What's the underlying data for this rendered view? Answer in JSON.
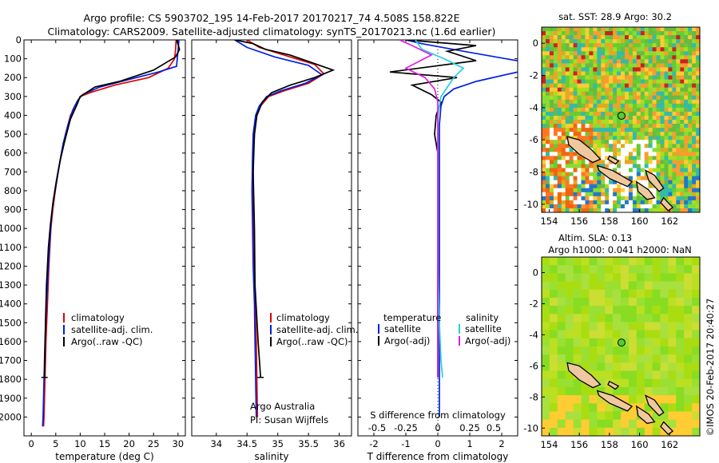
{
  "title_line1": "Argo profile: CS 5903702_195 14-Feb-2017 20170217_74 4.508S 158.822E",
  "title_line2": "Climatology: CARS2009. Satellite-adjusted climatology: synTS_20170213.nc (1.6d earlier)",
  "footer_stamp": "©IMOS 20-Feb-2017 20:40:27",
  "colors": {
    "climatology": "#e00000",
    "satellite": "#0020e0",
    "argo": "#000000",
    "argo_s": "#e020e0",
    "sat_s": "#20d0e0"
  },
  "chart_data": [
    {
      "type": "line",
      "id": "temperature",
      "xlabel": "temperature (deg C)",
      "xlim": [
        -1.5,
        31.5
      ],
      "xticks": [
        0,
        5,
        10,
        15,
        20,
        25,
        30
      ],
      "ylim": [
        0,
        2100
      ],
      "yticks": [
        0,
        100,
        200,
        300,
        400,
        500,
        600,
        700,
        800,
        900,
        1000,
        1100,
        1200,
        1300,
        1400,
        1500,
        1600,
        1700,
        1800,
        1900,
        2000
      ],
      "legend": [
        "climatology",
        "satellite-adj. clim.",
        "Argo(..raw -QC)"
      ],
      "series": [
        {
          "name": "climatology",
          "color": "climatology",
          "x": [
            29.6,
            29.5,
            29.3,
            28,
            24,
            17,
            12,
            10,
            9,
            8,
            7,
            6.2,
            5.5,
            4.9,
            4.4,
            4,
            3.6,
            3.3,
            3,
            2.8,
            2.6,
            2.5
          ],
          "y": [
            0,
            50,
            100,
            150,
            200,
            240,
            280,
            300,
            350,
            400,
            500,
            600,
            700,
            800,
            900,
            1000,
            1200,
            1400,
            1600,
            1800,
            2000,
            2050
          ]
        },
        {
          "name": "satellite-adj. clim.",
          "color": "satellite",
          "x": [
            30.2,
            30,
            29.7,
            26,
            20,
            14,
            10.5,
            9.5,
            8.5,
            7.5,
            6.5,
            5.8,
            5.1,
            4.5,
            4.1,
            3.7,
            3.4,
            3.1,
            2.8,
            2.6,
            2.4,
            2.3
          ],
          "y": [
            0,
            60,
            140,
            170,
            210,
            250,
            290,
            320,
            370,
            450,
            550,
            650,
            750,
            850,
            950,
            1100,
            1250,
            1400,
            1600,
            1800,
            2000,
            2050
          ]
        },
        {
          "name": "Argo(..raw -QC)",
          "color": "argo",
          "x": [
            29.7,
            30.3,
            29.5,
            25,
            18,
            13,
            10,
            9.4,
            8,
            6.8,
            5.9,
            5.1,
            4.4,
            3.9,
            3.5,
            3.1,
            2.9,
            2.7
          ],
          "y": [
            0,
            50,
            90,
            160,
            220,
            250,
            300,
            340,
            420,
            540,
            640,
            760,
            870,
            980,
            1100,
            1300,
            1500,
            1790
          ],
          "stop_y": 1790
        }
      ]
    },
    {
      "type": "line",
      "id": "salinity",
      "xlabel": "salinity",
      "xlim": [
        33.6,
        36.2
      ],
      "xticks": [
        34,
        34.5,
        35,
        35.5,
        36
      ],
      "ylim": [
        0,
        2100
      ],
      "legend": [
        "climatology",
        "satellite-adj. clim.",
        "Argo(..raw -QC)"
      ],
      "annotations": [
        "Argo Australia",
        "PI: Susan Wijffels"
      ],
      "series": [
        {
          "name": "climatology",
          "color": "climatology",
          "x": [
            34.5,
            34.7,
            35.2,
            35.6,
            35.75,
            35.5,
            35.1,
            34.85,
            34.72,
            34.66,
            34.62,
            34.6,
            34.6,
            34.61,
            34.62,
            34.63,
            34.65,
            34.66,
            34.67
          ],
          "y": [
            0,
            40,
            90,
            130,
            180,
            230,
            270,
            300,
            350,
            400,
            500,
            600,
            800,
            1000,
            1200,
            1400,
            1600,
            1800,
            2000
          ]
        },
        {
          "name": "satellite-adj. clim.",
          "color": "satellite",
          "x": [
            34.3,
            34.5,
            34.95,
            35.5,
            35.72,
            35.45,
            35.05,
            34.82,
            34.7,
            34.64,
            34.6,
            34.59,
            34.58,
            34.59,
            34.6,
            34.62,
            34.63,
            34.64,
            34.65
          ],
          "y": [
            0,
            40,
            90,
            135,
            185,
            230,
            270,
            300,
            350,
            400,
            500,
            600,
            800,
            1000,
            1200,
            1400,
            1600,
            1800,
            2000
          ]
        },
        {
          "name": "Argo(..raw -QC)",
          "color": "argo",
          "x": [
            34.3,
            34.6,
            34.8,
            35.2,
            35.9,
            35.6,
            35.2,
            34.9,
            34.75,
            34.66,
            34.62,
            34.6,
            34.62,
            34.63,
            34.68,
            34.72
          ],
          "y": [
            0,
            20,
            50,
            80,
            160,
            200,
            240,
            280,
            330,
            400,
            500,
            700,
            1000,
            1300,
            1600,
            1790
          ],
          "stop_y": 1790
        }
      ]
    },
    {
      "type": "line",
      "id": "difference",
      "xlabel": "T difference from climatology",
      "xlabel_top": "S difference from climatology",
      "xlim": [
        -2.5,
        2.5
      ],
      "xticks": [
        -2,
        -1,
        0,
        1,
        2
      ],
      "top_ticks_labels": [
        "-0.5",
        "-0.25",
        "0",
        "0.25",
        "0.5"
      ],
      "top_ticks_pos": [
        -1.9,
        -1.0,
        0,
        1.0,
        1.75
      ],
      "ylim": [
        0,
        2100
      ],
      "legend_temperature": [
        "temperature",
        "satellite",
        "Argo(-adj)"
      ],
      "legend_salinity": [
        "salinity",
        "satellite",
        "Argo(-adj)"
      ],
      "series": [
        {
          "name": "T satellite",
          "color": "satellite",
          "x": [
            -1,
            -0.5,
            0.8,
            2.8,
            2.5,
            1.2,
            0.5,
            0.2,
            0.1,
            0.05,
            0.05,
            0.05,
            0.05,
            0.05,
            0.05,
            0.05,
            0.05,
            0.05,
            0.05
          ],
          "y": [
            0,
            20,
            60,
            120,
            170,
            220,
            260,
            300,
            350,
            450,
            600,
            800,
            1000,
            1200,
            1400,
            1600,
            1700,
            1790,
            2000
          ]
        },
        {
          "name": "T Argo(-adj)",
          "color": "argo",
          "x": [
            -1,
            1.2,
            0.3,
            1.2,
            -1.5,
            0.6,
            -0.8,
            -0.2,
            0.1,
            -0.05,
            -0.1,
            0,
            0,
            0,
            0,
            0,
            0
          ],
          "y": [
            0,
            30,
            60,
            110,
            170,
            200,
            240,
            290,
            330,
            400,
            500,
            600,
            800,
            1000,
            1400,
            1700,
            1790
          ]
        },
        {
          "name": "S satellite",
          "color": "sat_s",
          "x": [
            -0.7,
            -0.5,
            0.2,
            0.8,
            0.5,
            0.1,
            0,
            0,
            0,
            0,
            0.05,
            0.1,
            0.15
          ],
          "y": [
            0,
            50,
            100,
            150,
            200,
            300,
            400,
            600,
            900,
            1200,
            1500,
            1700,
            1790
          ]
        },
        {
          "name": "S Argo(-adj)",
          "color": "argo_s",
          "x": [
            -1.2,
            -0.8,
            -0.2,
            -1,
            -0.4,
            -0.1,
            0,
            0,
            0,
            0,
            0,
            0
          ],
          "y": [
            0,
            30,
            80,
            150,
            200,
            260,
            330,
            500,
            800,
            1100,
            1500,
            1790
          ]
        }
      ]
    },
    {
      "type": "heatmap",
      "id": "sst_map",
      "title": "sat. SST: 28.9 Argo: 30.2",
      "xticks": [
        154,
        156,
        158,
        160,
        162
      ],
      "yticks": [
        0,
        -2,
        -4,
        -6,
        -8,
        -10
      ],
      "xlim": [
        153.5,
        164
      ],
      "ylim": [
        -10.5,
        1
      ],
      "argo_lon": 158.8,
      "argo_lat": -4.5
    },
    {
      "type": "heatmap",
      "id": "sla_map",
      "title_line1": "Altim. SLA: 0.13",
      "title_line2": "Argo h1000: 0.041 h2000: NaN",
      "xticks": [
        154,
        156,
        158,
        160,
        162
      ],
      "yticks": [
        0,
        -2,
        -4,
        -6,
        -8,
        -10
      ],
      "xlim": [
        153.5,
        164
      ],
      "ylim": [
        -10.5,
        1
      ],
      "argo_lon": 158.8,
      "argo_lat": -4.5
    }
  ]
}
